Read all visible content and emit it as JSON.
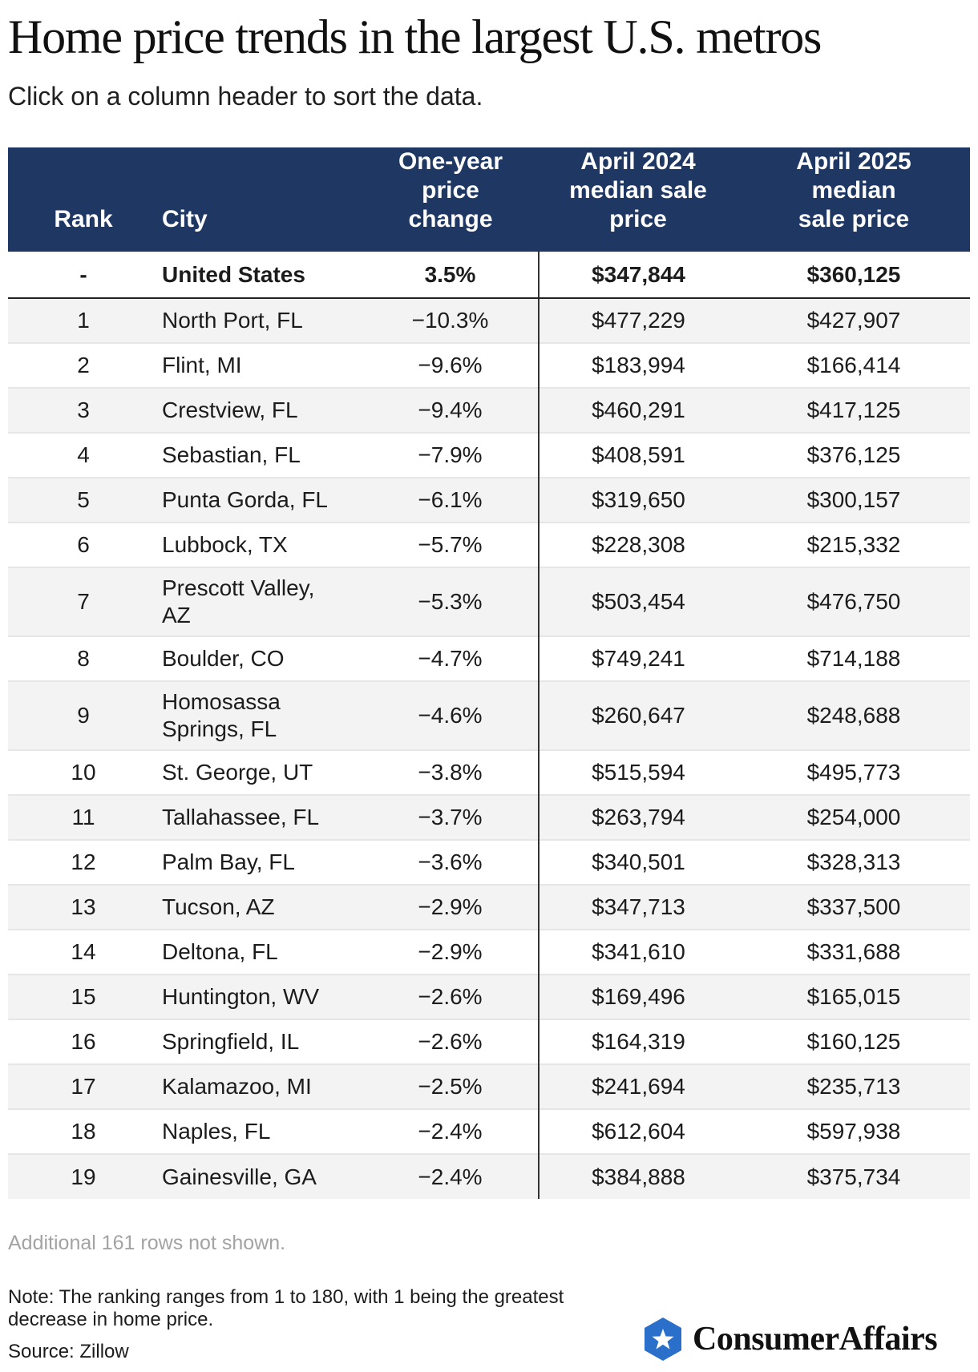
{
  "title": "Home price trends in the largest U.S. metros",
  "subtitle": "Click on a column header to sort the data.",
  "table": {
    "headers": {
      "rank": "Rank",
      "city": "City",
      "change_l1": "One-year",
      "change_l2": "price",
      "change_l3": "change",
      "p2024_l1": "April 2024",
      "p2024_l2": "median sale",
      "p2024_l3": "price",
      "p2025_l1": "April 2025",
      "p2025_l2": "median",
      "p2025_l3": "sale price"
    },
    "us_row": {
      "rank": "-",
      "city": "United States",
      "change": "3.5%",
      "p2024": "$347,844",
      "p2025": "$360,125"
    },
    "rows": [
      {
        "rank": "1",
        "city": "North Port, FL",
        "change": "−10.3%",
        "p2024": "$477,229",
        "p2025": "$427,907"
      },
      {
        "rank": "2",
        "city": "Flint, MI",
        "change": "−9.6%",
        "p2024": "$183,994",
        "p2025": "$166,414"
      },
      {
        "rank": "3",
        "city": "Crestview, FL",
        "change": "−9.4%",
        "p2024": "$460,291",
        "p2025": "$417,125"
      },
      {
        "rank": "4",
        "city": "Sebastian, FL",
        "change": "−7.9%",
        "p2024": "$408,591",
        "p2025": "$376,125"
      },
      {
        "rank": "5",
        "city": "Punta Gorda, FL",
        "change": "−6.1%",
        "p2024": "$319,650",
        "p2025": "$300,157"
      },
      {
        "rank": "6",
        "city": "Lubbock, TX",
        "change": "−5.7%",
        "p2024": "$228,308",
        "p2025": "$215,332"
      },
      {
        "rank": "7",
        "city_l1": "Prescott Valley,",
        "city_l2": "AZ",
        "change": "−5.3%",
        "p2024": "$503,454",
        "p2025": "$476,750"
      },
      {
        "rank": "8",
        "city": "Boulder, CO",
        "change": "−4.7%",
        "p2024": "$749,241",
        "p2025": "$714,188"
      },
      {
        "rank": "9",
        "city_l1": "Homosassa",
        "city_l2": "Springs, FL",
        "change": "−4.6%",
        "p2024": "$260,647",
        "p2025": "$248,688"
      },
      {
        "rank": "10",
        "city": "St. George, UT",
        "change": "−3.8%",
        "p2024": "$515,594",
        "p2025": "$495,773"
      },
      {
        "rank": "11",
        "city": "Tallahassee, FL",
        "change": "−3.7%",
        "p2024": "$263,794",
        "p2025": "$254,000"
      },
      {
        "rank": "12",
        "city": "Palm Bay, FL",
        "change": "−3.6%",
        "p2024": "$340,501",
        "p2025": "$328,313"
      },
      {
        "rank": "13",
        "city": "Tucson, AZ",
        "change": "−2.9%",
        "p2024": "$347,713",
        "p2025": "$337,500"
      },
      {
        "rank": "14",
        "city": "Deltona, FL",
        "change": "−2.9%",
        "p2024": "$341,610",
        "p2025": "$331,688"
      },
      {
        "rank": "15",
        "city": "Huntington, WV",
        "change": "−2.6%",
        "p2024": "$169,496",
        "p2025": "$165,015"
      },
      {
        "rank": "16",
        "city": "Springfield, IL",
        "change": "−2.6%",
        "p2024": "$164,319",
        "p2025": "$160,125"
      },
      {
        "rank": "17",
        "city": "Kalamazoo, MI",
        "change": "−2.5%",
        "p2024": "$241,694",
        "p2025": "$235,713"
      },
      {
        "rank": "18",
        "city": "Naples, FL",
        "change": "−2.4%",
        "p2024": "$612,604",
        "p2025": "$597,938"
      },
      {
        "rank": "19",
        "city": "Gainesville, GA",
        "change": "−2.4%",
        "p2024": "$384,888",
        "p2025": "$375,734"
      }
    ]
  },
  "footer": {
    "more_rows": "Additional 161 rows not shown.",
    "note": "Note: The ranking ranges from 1 to 180, with 1 being the greatest decrease in home price.",
    "source": "Source: Zillow"
  },
  "logo": {
    "brand": "ConsumerAffairs",
    "icon": "star-shield-icon"
  },
  "colors": {
    "header_bg": "#1f3763",
    "alt_row": "#f3f3f3",
    "logo_blue": "#2a6fc9"
  }
}
